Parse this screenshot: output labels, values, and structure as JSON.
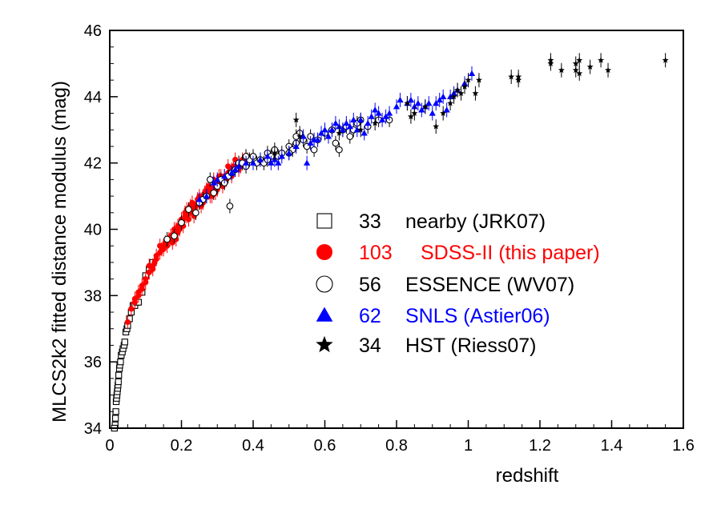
{
  "chart_data": {
    "type": "scatter",
    "title": "",
    "xlabel": "redshift",
    "ylabel": "MLCS2k2 fitted distance modulus (mag)",
    "xlim": [
      0,
      1.6
    ],
    "ylim": [
      34,
      46
    ],
    "x_ticks": [
      "0",
      "0.2",
      "0.4",
      "0.6",
      "0.8",
      "1",
      "1.2",
      "1.4",
      "1.6"
    ],
    "y_ticks": [
      "34",
      "36",
      "38",
      "40",
      "42",
      "44",
      "46"
    ],
    "grid": false,
    "legend_position": "center-right",
    "series": [
      {
        "name": "nearby (JRK07)",
        "count": "33",
        "marker": "open-square",
        "color": "#000000",
        "points": [
          [
            0.015,
            34.1
          ],
          [
            0.016,
            34.3
          ],
          [
            0.017,
            34.5
          ],
          [
            0.018,
            34.8
          ],
          [
            0.019,
            34.9
          ],
          [
            0.02,
            35.0
          ],
          [
            0.021,
            35.1
          ],
          [
            0.022,
            35.2
          ],
          [
            0.023,
            35.3
          ],
          [
            0.025,
            35.6
          ],
          [
            0.027,
            35.8
          ],
          [
            0.028,
            35.9
          ],
          [
            0.03,
            36.0
          ],
          [
            0.032,
            36.2
          ],
          [
            0.035,
            36.3
          ],
          [
            0.037,
            36.4
          ],
          [
            0.04,
            36.5
          ],
          [
            0.042,
            36.6
          ],
          [
            0.045,
            36.9
          ],
          [
            0.048,
            37.0
          ],
          [
            0.05,
            37.1
          ],
          [
            0.055,
            37.3
          ],
          [
            0.06,
            37.5
          ],
          [
            0.065,
            37.7
          ],
          [
            0.07,
            37.7
          ],
          [
            0.075,
            37.8
          ],
          [
            0.08,
            37.8
          ],
          [
            0.09,
            38.1
          ],
          [
            0.1,
            38.6
          ],
          [
            0.11,
            38.8
          ],
          [
            0.12,
            39.0
          ],
          [
            0.013,
            34.0
          ],
          [
            0.024,
            35.4
          ]
        ]
      },
      {
        "name": "SDSS-II (this paper)",
        "count": "103",
        "marker": "filled-circle",
        "color": "#ff0000",
        "points": [
          [
            0.05,
            37.2
          ],
          [
            0.06,
            37.6
          ],
          [
            0.07,
            37.9
          ],
          [
            0.08,
            38.0
          ],
          [
            0.09,
            38.3
          ],
          [
            0.1,
            38.5
          ],
          [
            0.11,
            38.7
          ],
          [
            0.12,
            38.9
          ],
          [
            0.125,
            39.0
          ],
          [
            0.13,
            39.1
          ],
          [
            0.14,
            39.3
          ],
          [
            0.145,
            39.4
          ],
          [
            0.15,
            39.5
          ],
          [
            0.155,
            39.6
          ],
          [
            0.16,
            39.6
          ],
          [
            0.165,
            39.7
          ],
          [
            0.17,
            39.8
          ],
          [
            0.175,
            39.8
          ],
          [
            0.18,
            39.9
          ],
          [
            0.185,
            40.0
          ],
          [
            0.19,
            40.1
          ],
          [
            0.195,
            40.1
          ],
          [
            0.2,
            40.2
          ],
          [
            0.205,
            40.3
          ],
          [
            0.21,
            40.4
          ],
          [
            0.215,
            40.4
          ],
          [
            0.22,
            40.5
          ],
          [
            0.225,
            40.5
          ],
          [
            0.23,
            40.6
          ],
          [
            0.235,
            40.6
          ],
          [
            0.24,
            40.7
          ],
          [
            0.245,
            40.8
          ],
          [
            0.25,
            40.8
          ],
          [
            0.255,
            40.9
          ],
          [
            0.26,
            41.0
          ],
          [
            0.265,
            41.0
          ],
          [
            0.27,
            41.1
          ],
          [
            0.275,
            41.1
          ],
          [
            0.28,
            41.2
          ],
          [
            0.285,
            41.2
          ],
          [
            0.29,
            41.3
          ],
          [
            0.295,
            41.3
          ],
          [
            0.3,
            41.4
          ],
          [
            0.305,
            41.4
          ],
          [
            0.31,
            41.5
          ],
          [
            0.32,
            41.6
          ],
          [
            0.33,
            41.7
          ],
          [
            0.34,
            41.8
          ],
          [
            0.35,
            41.9
          ],
          [
            0.36,
            42.0
          ],
          [
            0.37,
            42.1
          ],
          [
            0.38,
            42.2
          ],
          [
            0.15,
            39.4
          ],
          [
            0.16,
            39.5
          ],
          [
            0.17,
            39.7
          ],
          [
            0.18,
            40.0
          ],
          [
            0.19,
            39.9
          ],
          [
            0.2,
            40.3
          ],
          [
            0.21,
            40.5
          ],
          [
            0.22,
            40.3
          ],
          [
            0.23,
            40.8
          ],
          [
            0.24,
            40.5
          ],
          [
            0.25,
            41.0
          ],
          [
            0.26,
            40.8
          ],
          [
            0.27,
            41.2
          ],
          [
            0.28,
            41.0
          ],
          [
            0.29,
            41.5
          ],
          [
            0.3,
            41.2
          ],
          [
            0.31,
            41.6
          ],
          [
            0.32,
            41.4
          ],
          [
            0.33,
            41.9
          ],
          [
            0.34,
            41.6
          ],
          [
            0.35,
            42.1
          ],
          [
            0.36,
            41.8
          ],
          [
            0.14,
            39.5
          ],
          [
            0.13,
            39.2
          ],
          [
            0.12,
            38.8
          ],
          [
            0.11,
            38.9
          ],
          [
            0.1,
            38.4
          ],
          [
            0.09,
            38.2
          ],
          [
            0.08,
            38.1
          ],
          [
            0.07,
            37.8
          ],
          [
            0.175,
            39.6
          ],
          [
            0.185,
            39.7
          ],
          [
            0.195,
            40.0
          ],
          [
            0.205,
            40.1
          ],
          [
            0.215,
            40.6
          ],
          [
            0.225,
            40.7
          ],
          [
            0.235,
            40.4
          ],
          [
            0.245,
            40.9
          ],
          [
            0.255,
            40.7
          ],
          [
            0.265,
            41.1
          ],
          [
            0.275,
            41.3
          ],
          [
            0.285,
            41.0
          ],
          [
            0.295,
            41.1
          ],
          [
            0.305,
            41.6
          ],
          [
            0.315,
            41.3
          ],
          [
            0.325,
            41.5
          ],
          [
            0.335,
            41.7
          ],
          [
            0.345,
            41.9
          ],
          [
            0.365,
            41.9
          ],
          [
            0.375,
            42.0
          ],
          [
            0.385,
            42.1
          ]
        ]
      },
      {
        "name": "ESSENCE (WV07)",
        "count": "56",
        "marker": "open-circle",
        "color": "#000000",
        "points": [
          [
            0.16,
            39.7
          ],
          [
            0.18,
            39.8
          ],
          [
            0.2,
            40.2
          ],
          [
            0.22,
            40.6
          ],
          [
            0.24,
            40.5
          ],
          [
            0.25,
            40.8
          ],
          [
            0.26,
            40.9
          ],
          [
            0.28,
            41.5
          ],
          [
            0.29,
            41.1
          ],
          [
            0.3,
            41.3
          ],
          [
            0.31,
            41.5
          ],
          [
            0.32,
            41.4
          ],
          [
            0.33,
            41.6
          ],
          [
            0.335,
            40.7
          ],
          [
            0.34,
            41.7
          ],
          [
            0.35,
            41.8
          ],
          [
            0.36,
            42.0
          ],
          [
            0.37,
            42.0
          ],
          [
            0.38,
            41.9
          ],
          [
            0.39,
            42.1
          ],
          [
            0.4,
            42.2
          ],
          [
            0.41,
            42.0
          ],
          [
            0.42,
            42.1
          ],
          [
            0.43,
            42.0
          ],
          [
            0.44,
            42.3
          ],
          [
            0.45,
            42.2
          ],
          [
            0.46,
            42.4
          ],
          [
            0.47,
            42.2
          ],
          [
            0.48,
            42.3
          ],
          [
            0.5,
            42.5
          ],
          [
            0.51,
            42.4
          ],
          [
            0.52,
            42.6
          ],
          [
            0.53,
            42.9
          ],
          [
            0.54,
            42.7
          ],
          [
            0.55,
            42.5
          ],
          [
            0.56,
            42.8
          ],
          [
            0.57,
            42.4
          ],
          [
            0.58,
            42.7
          ],
          [
            0.6,
            42.9
          ],
          [
            0.62,
            43.0
          ],
          [
            0.63,
            42.6
          ],
          [
            0.64,
            42.4
          ],
          [
            0.65,
            43.0
          ],
          [
            0.66,
            43.1
          ],
          [
            0.67,
            42.8
          ],
          [
            0.68,
            43.0
          ],
          [
            0.69,
            43.2
          ],
          [
            0.7,
            43.3
          ],
          [
            0.72,
            43.1
          ],
          [
            0.75,
            43.3
          ],
          [
            0.78,
            43.3
          ],
          [
            0.5,
            42.3
          ],
          [
            0.52,
            42.8
          ],
          [
            0.44,
            42.1
          ],
          [
            0.38,
            42.2
          ],
          [
            0.27,
            41.0
          ]
        ]
      },
      {
        "name": "SNLS (Astier06)",
        "count": "62",
        "marker": "filled-triangle",
        "color": "#0000ff",
        "points": [
          [
            0.25,
            40.9
          ],
          [
            0.27,
            41.0
          ],
          [
            0.29,
            41.4
          ],
          [
            0.3,
            41.5
          ],
          [
            0.32,
            41.6
          ],
          [
            0.34,
            41.7
          ],
          [
            0.36,
            41.9
          ],
          [
            0.38,
            42.0
          ],
          [
            0.4,
            42.0
          ],
          [
            0.42,
            42.1
          ],
          [
            0.44,
            42.2
          ],
          [
            0.46,
            42.1
          ],
          [
            0.47,
            42.0
          ],
          [
            0.48,
            42.2
          ],
          [
            0.5,
            42.3
          ],
          [
            0.52,
            42.5
          ],
          [
            0.54,
            42.8
          ],
          [
            0.55,
            42.0
          ],
          [
            0.56,
            42.6
          ],
          [
            0.58,
            42.7
          ],
          [
            0.59,
            42.9
          ],
          [
            0.6,
            43.0
          ],
          [
            0.61,
            42.8
          ],
          [
            0.62,
            43.0
          ],
          [
            0.64,
            43.1
          ],
          [
            0.65,
            43.0
          ],
          [
            0.66,
            43.2
          ],
          [
            0.68,
            43.3
          ],
          [
            0.69,
            43.0
          ],
          [
            0.7,
            43.3
          ],
          [
            0.71,
            42.9
          ],
          [
            0.72,
            43.2
          ],
          [
            0.73,
            43.4
          ],
          [
            0.74,
            43.6
          ],
          [
            0.75,
            43.5
          ],
          [
            0.76,
            43.3
          ],
          [
            0.78,
            43.5
          ],
          [
            0.8,
            43.7
          ],
          [
            0.81,
            43.9
          ],
          [
            0.83,
            43.8
          ],
          [
            0.84,
            43.9
          ],
          [
            0.85,
            43.7
          ],
          [
            0.86,
            43.8
          ],
          [
            0.87,
            43.6
          ],
          [
            0.89,
            43.8
          ],
          [
            0.9,
            43.5
          ],
          [
            0.91,
            43.8
          ],
          [
            0.92,
            43.9
          ],
          [
            0.93,
            44.0
          ],
          [
            0.94,
            43.6
          ],
          [
            0.95,
            44.0
          ],
          [
            0.96,
            44.1
          ],
          [
            0.97,
            44.2
          ],
          [
            0.99,
            44.4
          ],
          [
            1.01,
            44.7
          ],
          [
            0.45,
            42.0
          ],
          [
            0.57,
            42.7
          ],
          [
            0.63,
            43.2
          ],
          [
            0.67,
            43.1
          ],
          [
            0.77,
            43.4
          ],
          [
            0.88,
            43.7
          ],
          [
            0.35,
            41.8
          ]
        ]
      },
      {
        "name": "HST (Riess07)",
        "count": "34",
        "marker": "star",
        "color": "#000000",
        "points": [
          [
            0.46,
            42.3
          ],
          [
            0.52,
            43.3
          ],
          [
            0.53,
            42.8
          ],
          [
            0.64,
            42.9
          ],
          [
            0.7,
            43.0
          ],
          [
            0.74,
            43.2
          ],
          [
            0.83,
            43.8
          ],
          [
            0.84,
            43.4
          ],
          [
            0.85,
            43.5
          ],
          [
            0.88,
            43.7
          ],
          [
            0.91,
            43.1
          ],
          [
            0.93,
            43.5
          ],
          [
            0.95,
            43.8
          ],
          [
            0.96,
            44.0
          ],
          [
            0.97,
            44.2
          ],
          [
            0.98,
            44.1
          ],
          [
            0.99,
            44.3
          ],
          [
            1.0,
            44.5
          ],
          [
            1.02,
            44.1
          ],
          [
            1.03,
            44.5
          ],
          [
            1.12,
            44.6
          ],
          [
            1.14,
            44.5
          ],
          [
            1.14,
            44.6
          ],
          [
            1.23,
            45.1
          ],
          [
            1.23,
            45.0
          ],
          [
            1.26,
            44.8
          ],
          [
            1.3,
            44.8
          ],
          [
            1.3,
            45.0
          ],
          [
            1.31,
            45.1
          ],
          [
            1.31,
            44.7
          ],
          [
            1.34,
            44.9
          ],
          [
            1.37,
            45.1
          ],
          [
            1.39,
            44.8
          ],
          [
            1.55,
            45.1
          ]
        ]
      }
    ]
  }
}
